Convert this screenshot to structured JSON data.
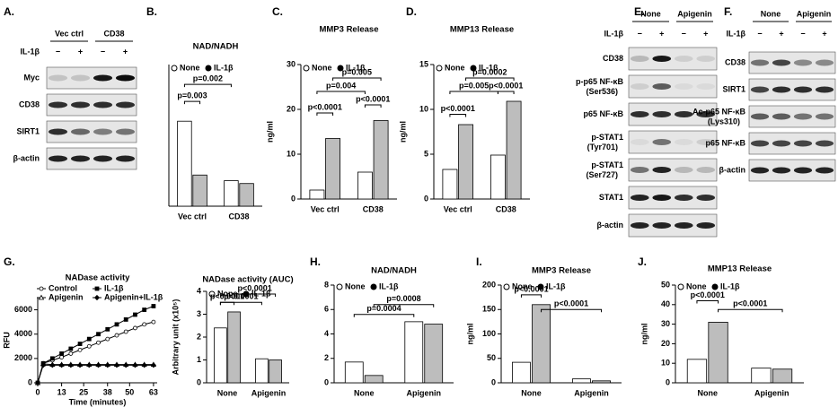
{
  "blots": [
    {
      "panel": "A.",
      "groups": [
        "Vec ctrl",
        "CD38"
      ],
      "treatment": "IL-1β",
      "signs": [
        "−",
        "+",
        "−",
        "+"
      ],
      "rows": [
        {
          "name": "Myc"
        },
        {
          "name": "CD38"
        },
        {
          "name": "SIRT1"
        },
        {
          "name": "β-actin"
        }
      ]
    },
    {
      "panel": "E.",
      "groups": [
        "None",
        "Apigenin"
      ],
      "treatment": "IL-1β",
      "signs": [
        "−",
        "+",
        "−",
        "+"
      ],
      "rows": [
        {
          "name": "CD38"
        },
        {
          "name": "p-p65 NF-κB",
          "sub": "(Ser536)"
        },
        {
          "name": "p65 NF-κB"
        },
        {
          "name": "p-STAT1",
          "sub": "(Tyr701)"
        },
        {
          "name": "p-STAT1",
          "sub": "(Ser727)"
        },
        {
          "name": "STAT1"
        },
        {
          "name": "β-actin"
        }
      ]
    },
    {
      "panel": "F.",
      "groups": [
        "None",
        "Apigenin"
      ],
      "treatment": "IL-1β",
      "signs": [
        "−",
        "+",
        "−",
        "+"
      ],
      "rows": [
        {
          "name": "CD38"
        },
        {
          "name": "SIRT1"
        },
        {
          "name": "Ac-p65 NF-κB",
          "sub": "(Lys310)"
        },
        {
          "name": "p65 NF-κB"
        },
        {
          "name": "β-actin"
        }
      ]
    }
  ],
  "chart_data": [
    {
      "panel": "B.",
      "type": "bar",
      "title": "NAD/NADH",
      "categories": [
        "Vec ctrl",
        "CD38"
      ],
      "series": [
        {
          "name": "None",
          "color": "#ffffff",
          "values": [
            1.5,
            0.45
          ]
        },
        {
          "name": "IL-1β",
          "color": "#bdbdbd",
          "values": [
            0.55,
            0.4
          ]
        }
      ],
      "ylim": [
        0,
        2.5
      ],
      "annotations": [
        "p=0.002",
        "p=0.003"
      ]
    },
    {
      "panel": "C.",
      "type": "bar",
      "title": "MMP3 Release",
      "y_label": "ng/ml",
      "categories": [
        "Vec ctrl",
        "CD38"
      ],
      "series": [
        {
          "name": "None",
          "color": "#ffffff",
          "values": [
            2,
            6
          ]
        },
        {
          "name": "IL-1β",
          "color": "#bdbdbd",
          "values": [
            13.5,
            17.5
          ]
        }
      ],
      "ylim": [
        0,
        30
      ],
      "yticks": [
        0,
        10,
        20,
        30
      ],
      "annotations": [
        "p=0.005",
        "p=0.004",
        "p<0.0001",
        "p<0.0001"
      ]
    },
    {
      "panel": "D.",
      "type": "bar",
      "title": "MMP13 Release",
      "y_label": "ng/ml",
      "categories": [
        "Vec ctrl",
        "CD38"
      ],
      "series": [
        {
          "name": "None",
          "color": "#ffffff",
          "values": [
            3.3,
            4.9
          ]
        },
        {
          "name": "IL-1β",
          "color": "#bdbdbd",
          "values": [
            8.3,
            10.9
          ]
        }
      ],
      "ylim": [
        0,
        15
      ],
      "yticks": [
        0,
        5,
        10,
        15
      ],
      "annotations": [
        "p=0.0002",
        "p=0.005",
        "p<0.0001",
        "p<0.0001"
      ]
    },
    {
      "panel": "G.",
      "type": "line",
      "title": "NADase activity",
      "x_label": "Time (minutes)",
      "y_label": "RFU",
      "x": [
        0,
        3,
        8,
        13,
        18,
        23,
        28,
        33,
        38,
        43,
        48,
        53,
        58,
        63
      ],
      "series": [
        {
          "name": "Control",
          "color": "#000000",
          "marker": "circle",
          "values": [
            0,
            1600,
            1850,
            2100,
            2400,
            2700,
            3000,
            3300,
            3600,
            3900,
            4200,
            4500,
            4800,
            5000
          ]
        },
        {
          "name": "IL-1β",
          "color": "#000000",
          "marker": "square",
          "values": [
            0,
            1600,
            2000,
            2400,
            2800,
            3200,
            3600,
            4000,
            4400,
            4800,
            5200,
            5600,
            6000,
            6300
          ]
        },
        {
          "name": "Apigenin",
          "color": "#000000",
          "marker": "triangle",
          "values": [
            0,
            1550,
            1500,
            1500,
            1500,
            1500,
            1500,
            1500,
            1500,
            1500,
            1500,
            1500,
            1500,
            1500
          ]
        },
        {
          "name": "Apigenin+IL-1β",
          "color": "#000000",
          "marker": "diamond",
          "values": [
            0,
            1450,
            1450,
            1450,
            1450,
            1450,
            1450,
            1450,
            1450,
            1450,
            1450,
            1450,
            1450,
            1450
          ]
        }
      ],
      "xlim": [
        0,
        65
      ],
      "xticks": [
        0,
        13,
        25,
        38,
        50,
        63
      ],
      "ylim": [
        0,
        7000
      ],
      "yticks": [
        0,
        2000,
        4000,
        6000
      ]
    },
    {
      "type": "bar",
      "title": "NADase activity (AUC)",
      "y_label": "Arbitrary unit (x10⁵)",
      "categories": [
        "None",
        "Apigenin"
      ],
      "series": [
        {
          "name": "None",
          "color": "#ffffff",
          "values": [
            2.4,
            1.05
          ]
        },
        {
          "name": "IL-1β",
          "color": "#bdbdbd",
          "values": [
            3.1,
            1.0
          ]
        }
      ],
      "ylim": [
        0,
        4
      ],
      "yticks": [
        0,
        1,
        2,
        3,
        4
      ],
      "annotations": [
        "p<0.0001",
        "p<0.0001",
        "p<0.0001"
      ]
    },
    {
      "panel": "H.",
      "type": "bar",
      "title": "NAD/NADH",
      "categories": [
        "None",
        "Apigenin"
      ],
      "series": [
        {
          "name": "None",
          "color": "#ffffff",
          "values": [
            1.7,
            5.0
          ]
        },
        {
          "name": "IL-1β",
          "color": "#bdbdbd",
          "values": [
            0.6,
            4.8
          ]
        }
      ],
      "ylim": [
        0,
        8
      ],
      "yticks": [
        0,
        2,
        4,
        6,
        8
      ],
      "annotations": [
        "p=0.0008",
        "p=0.0004"
      ]
    },
    {
      "panel": "I.",
      "type": "bar",
      "title": "MMP3 Release",
      "y_label": "ng/ml",
      "categories": [
        "None",
        "Apigenin"
      ],
      "series": [
        {
          "name": "None",
          "color": "#ffffff",
          "values": [
            42,
            8
          ]
        },
        {
          "name": "IL-1β",
          "color": "#bdbdbd",
          "values": [
            160,
            4
          ]
        }
      ],
      "ylim": [
        0,
        200
      ],
      "yticks": [
        0,
        50,
        100,
        150,
        200
      ],
      "annotations": [
        "p<0.0001",
        "p<0.0001"
      ]
    },
    {
      "panel": "J.",
      "type": "bar",
      "title": "MMP13 Release",
      "y_label": "ng/ml",
      "categories": [
        "None",
        "Apigenin"
      ],
      "series": [
        {
          "name": "None",
          "color": "#ffffff",
          "values": [
            12,
            7.5
          ]
        },
        {
          "name": "IL-1β",
          "color": "#bdbdbd",
          "values": [
            31,
            7
          ]
        }
      ],
      "ylim": [
        0,
        50
      ],
      "yticks": [
        0,
        10,
        20,
        30,
        40,
        50
      ],
      "annotations": [
        "p<0.0001",
        "p<0.0001"
      ]
    }
  ]
}
